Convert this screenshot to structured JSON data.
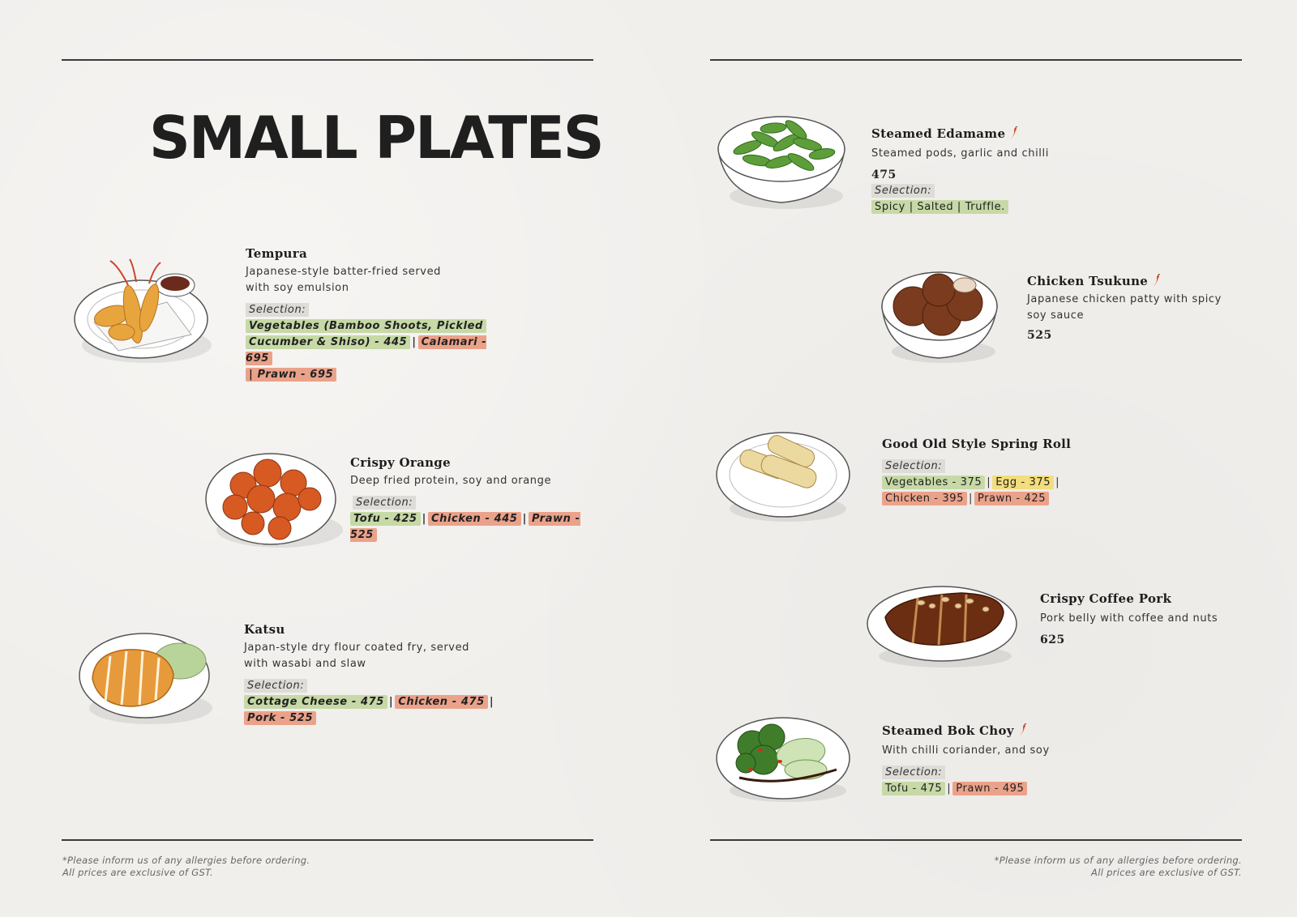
{
  "title": "SMALL PLATES",
  "left": [
    {
      "name": "Tempura",
      "desc1": "Japanese-style batter-fried served",
      "desc2": "with soy emulsion",
      "selection_label": "Selection:",
      "opt1": "Vegetables (Bamboo Shoots, Pickled",
      "opt2": "Cucumber & Shiso) - 445",
      "opt3": "Calamari - 695",
      "opt4": "| Prawn - 695"
    },
    {
      "name": "Crispy Orange",
      "desc1": "Deep fried protein, soy and orange",
      "selection_label": "Selection:",
      "opt1": "Tofu - 425",
      "opt2": "Chicken - 445",
      "opt3": "Prawn - 525"
    },
    {
      "name": "Katsu",
      "desc1": "Japan-style dry flour coated fry, served",
      "desc2": "with wasabi and slaw",
      "selection_label": "Selection:",
      "opt1": "Cottage Cheese - 475",
      "opt2": "Chicken - 475",
      "opt3": "Pork - 525"
    }
  ],
  "right": [
    {
      "name": "Steamed Edamame",
      "desc1": "Steamed pods, garlic and chilli",
      "price": "475",
      "selection_label": "Selection:",
      "opt1": "Spicy | Salted | Truffle."
    },
    {
      "name": "Chicken Tsukune",
      "desc1": "Japanese chicken patty with spicy",
      "desc2": "soy sauce",
      "price": "525"
    },
    {
      "name": "Good Old Style Spring Roll",
      "selection_label": "Selection:",
      "opt1": "Vegetables - 375",
      "opt2": "Egg - 375",
      "opt3": "Chicken - 395",
      "opt4": "Prawn - 425"
    },
    {
      "name": "Crispy Coffee Pork",
      "desc1": "Pork belly with coffee and nuts",
      "price": "625"
    },
    {
      "name": "Steamed Bok Choy",
      "desc1": "With chilli coriander, and soy",
      "selection_label": "Selection:",
      "opt1": "Tofu - 475",
      "opt2": "Prawn - 495"
    }
  ],
  "footer": {
    "line1": "*Please inform us of any allergies before ordering.",
    "line2": "All prices are exclusive of GST."
  },
  "colors": {
    "veg_tag": "#c6d9a6",
    "nonveg_tag": "#eba28a",
    "egg_tag": "#f3dd7c",
    "chili": "#d9482b"
  },
  "icons": {
    "spicy": "chili-icon"
  }
}
